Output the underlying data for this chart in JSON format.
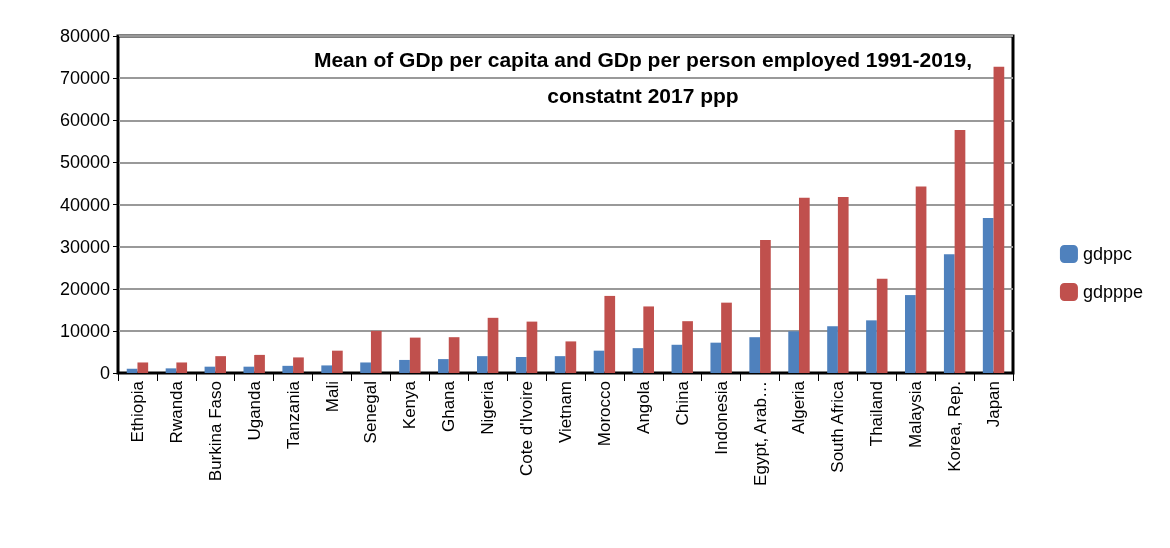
{
  "chart_data": {
    "type": "bar",
    "title": "Mean of GDp per capita and GDp per person employed 1991-2019,\nconstatnt 2017 ppp",
    "categories": [
      "Ethiopia",
      "Rwanda",
      "Burkina Faso",
      "Uganda",
      "Tanzania",
      "Mali",
      "Senegal",
      "Kenya",
      "Ghana",
      "Nigeria",
      "Cote d'Ivoire",
      "Vietnam",
      "Morocco",
      "Angola",
      "China",
      "Indonesia",
      "Egypt, Arab…",
      "Algeria",
      "South Africa",
      "Thailand",
      "Malaysia",
      "Korea, Rep.",
      "Japan"
    ],
    "series": [
      {
        "name": "gdppc",
        "color": "#4f81bd",
        "values": [
          1000,
          1100,
          1500,
          1500,
          1700,
          1800,
          2500,
          3100,
          3300,
          4000,
          3800,
          4000,
          5300,
          5900,
          6700,
          7200,
          8500,
          9900,
          11100,
          12500,
          18500,
          28200,
          36800
        ]
      },
      {
        "name": "gdpppe",
        "color": "#c0504d",
        "values": [
          2500,
          2500,
          4000,
          4300,
          3700,
          5300,
          10000,
          8400,
          8500,
          13100,
          12200,
          7500,
          18300,
          15800,
          12300,
          16700,
          31600,
          41600,
          41800,
          22400,
          44300,
          57700,
          72700
        ]
      }
    ],
    "ylim": [
      0,
      80000
    ],
    "yticks": [
      0,
      10000,
      20000,
      30000,
      40000,
      50000,
      60000,
      70000,
      80000
    ],
    "grid": "y",
    "legend": "right"
  }
}
